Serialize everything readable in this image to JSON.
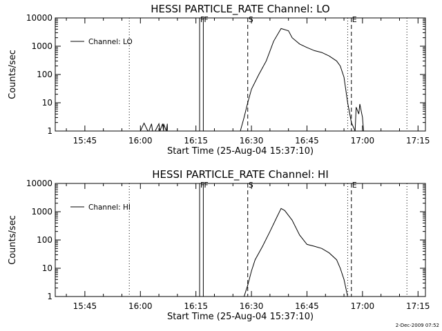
{
  "stamp": "2-Dec-2009 07:52",
  "chart_data": [
    {
      "type": "line",
      "title": "HESSI PARTICLE_RATE Channel: LO",
      "xlabel": "Start Time (25-Aug-04 15:37:10)",
      "ylabel": "Counts/sec",
      "yscale": "log",
      "ylim": [
        1,
        10000
      ],
      "xlim": [
        "15:37",
        "17:17"
      ],
      "x_ticks": [
        "15:45",
        "16:00",
        "16:15",
        "16:30",
        "16:45",
        "17:00",
        "17:15"
      ],
      "y_ticks": [
        "1",
        "10",
        "100",
        "1000",
        "10000"
      ],
      "legend": {
        "position": "top-left"
      },
      "series": [
        {
          "name": "Channel: LO",
          "x": [
            "16:00",
            "16:01",
            "16:02",
            "16:02",
            "16:03",
            "16:03",
            "16:04",
            "16:05",
            "16:05",
            "16:06",
            "16:06",
            "16:06",
            "16:07",
            "16:07",
            "16:07",
            "16:08",
            "16:08",
            "16:27",
            "16:28",
            "16:29",
            "16:30",
            "16:32",
            "16:34",
            "16:36",
            "16:38",
            "16:40",
            "16:41",
            "16:43",
            "16:45",
            "16:47",
            "16:49",
            "16:51",
            "16:53",
            "16:54",
            "16:55",
            "16:56",
            "16:57",
            "16:58",
            "16:58",
            "16:59",
            "16:59",
            "17:00",
            "17:00",
            "17:01"
          ],
          "y": [
            1,
            1.9,
            1,
            1,
            1.8,
            1,
            1,
            1.8,
            1,
            1.8,
            1,
            1.8,
            1,
            1.8,
            1,
            1,
            1,
            1,
            3,
            10,
            30,
            100,
            300,
            1500,
            4200,
            3500,
            2000,
            1200,
            900,
            700,
            600,
            450,
            300,
            200,
            80,
            10,
            2,
            1,
            7,
            4,
            9,
            3,
            1,
            1
          ]
        }
      ],
      "markers": [
        {
          "label": "F",
          "x": "16:16",
          "style": "solid"
        },
        {
          "label": "F",
          "x": "16:17",
          "style": "solid"
        },
        {
          "label": "S",
          "x": "16:29",
          "style": "dashed"
        },
        {
          "label": "E",
          "x": "16:57",
          "style": "dashed"
        },
        {
          "label": "",
          "x": "15:57",
          "style": "dotted"
        },
        {
          "label": "",
          "x": "16:56",
          "style": "dotted"
        },
        {
          "label": "",
          "x": "17:12",
          "style": "dotted"
        }
      ]
    },
    {
      "type": "line",
      "title": "HESSI PARTICLE_RATE Channel: HI",
      "xlabel": "Start Time (25-Aug-04 15:37:10)",
      "ylabel": "Counts/sec",
      "yscale": "log",
      "ylim": [
        1,
        10000
      ],
      "xlim": [
        "15:37",
        "17:17"
      ],
      "x_ticks": [
        "15:45",
        "16:00",
        "16:15",
        "16:30",
        "16:45",
        "17:00",
        "17:15"
      ],
      "y_ticks": [
        "1",
        "10",
        "100",
        "1000",
        "10000"
      ],
      "legend": {
        "position": "top-left"
      },
      "series": [
        {
          "name": "Channel: HI",
          "x": [
            "16:28",
            "16:29",
            "16:30",
            "16:31",
            "16:33",
            "16:35",
            "16:37",
            "16:38",
            "16:39",
            "16:41",
            "16:43",
            "16:45",
            "16:47",
            "16:49",
            "16:51",
            "16:53",
            "16:54",
            "16:55",
            "16:56"
          ],
          "y": [
            1,
            2.5,
            8,
            20,
            60,
            200,
            700,
            1300,
            1100,
            500,
            150,
            70,
            60,
            50,
            35,
            20,
            10,
            4,
            1
          ]
        }
      ],
      "markers": [
        {
          "label": "F",
          "x": "16:16",
          "style": "solid"
        },
        {
          "label": "F",
          "x": "16:17",
          "style": "solid"
        },
        {
          "label": "S",
          "x": "16:29",
          "style": "dashed"
        },
        {
          "label": "E",
          "x": "16:57",
          "style": "dashed"
        },
        {
          "label": "",
          "x": "15:57",
          "style": "dotted"
        },
        {
          "label": "",
          "x": "16:56",
          "style": "dotted"
        },
        {
          "label": "",
          "x": "17:12",
          "style": "dotted"
        }
      ]
    }
  ]
}
